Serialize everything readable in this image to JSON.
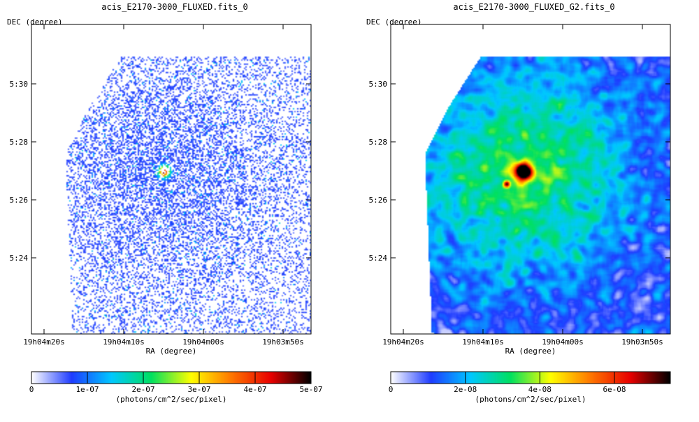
{
  "chart_data": [
    {
      "type": "heatmap",
      "title": "acis_E2170-3000_FLUXED.fits_0",
      "xlabel": "RA (degree)",
      "ylabel": "DEC (degree)",
      "x_ticks": [
        "19h04m20s",
        "19h04m10s",
        "19h04m00s",
        "19h03m50s"
      ],
      "y_ticks": [
        "5:30",
        "5:28",
        "5:26",
        "5:24"
      ],
      "colorbar": {
        "label": "(photons/cm^2/sec/pixel)",
        "ticks": [
          "0",
          "1e-07",
          "2e-07",
          "3e-07",
          "4e-07",
          "5e-07"
        ],
        "range": [
          0,
          5e-07
        ]
      },
      "colors": [
        "#ffffff",
        "#1e3cff",
        "#00c8ff",
        "#00e060",
        "#ffff00",
        "#ff7800",
        "#e80000",
        "#000000"
      ],
      "map_style": "sparse",
      "bright_source": {
        "ra": "19h04m05s",
        "dec": "5:27",
        "peak": 3.5e-07
      }
    },
    {
      "type": "heatmap",
      "title": "acis_E2170-3000_FLUXED_G2.fits_0",
      "xlabel": "RA (degree)",
      "ylabel": "DEC (degree)",
      "x_ticks": [
        "19h04m20s",
        "19h04m10s",
        "19h04m00s",
        "19h03m50s"
      ],
      "y_ticks": [
        "5:30",
        "5:28",
        "5:26",
        "5:24"
      ],
      "colorbar": {
        "label": "(photons/cm^2/sec/pixel)",
        "ticks": [
          "0",
          "2e-08",
          "4e-08",
          "6e-08"
        ],
        "range": [
          0,
          7.5e-08
        ]
      },
      "colors": [
        "#ffffff",
        "#1e3cff",
        "#00c8ff",
        "#00e060",
        "#ffff00",
        "#ff7800",
        "#e80000",
        "#000000"
      ],
      "map_style": "smoothed",
      "bright_source": {
        "ra": "19h04m05s",
        "dec": "5:27",
        "peak": 7.5e-08
      }
    }
  ]
}
